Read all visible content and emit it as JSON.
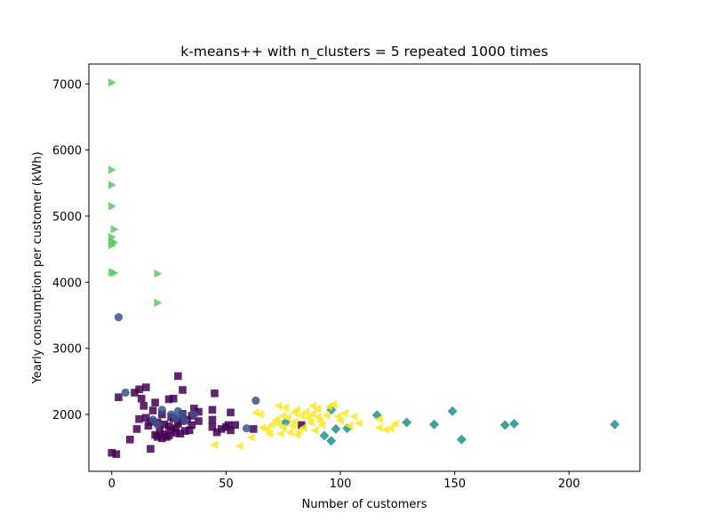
{
  "chart_data": {
    "type": "scatter",
    "title": "k-means++ with n_clusters = 5 repeated 1000 times",
    "xlabel": "Number of customers",
    "ylabel": "Yearly consumption per customer (kWh)",
    "xlim": [
      -10,
      231
    ],
    "ylim": [
      1140,
      7300
    ],
    "xticks": [
      0,
      50,
      100,
      150,
      200
    ],
    "yticks": [
      2000,
      3000,
      4000,
      5000,
      6000,
      7000
    ],
    "grid": false,
    "legend": "none",
    "series": [
      {
        "marker": "square",
        "color": "#440154",
        "points": [
          [
            0,
            1420
          ],
          [
            2,
            1400
          ],
          [
            3,
            2260
          ],
          [
            8,
            1620
          ],
          [
            10,
            2330
          ],
          [
            11,
            1780
          ],
          [
            12,
            1930
          ],
          [
            12,
            2380
          ],
          [
            13,
            2240
          ],
          [
            14,
            2130
          ],
          [
            15,
            2410
          ],
          [
            15,
            1950
          ],
          [
            16,
            1830
          ],
          [
            17,
            1890
          ],
          [
            17,
            1480
          ],
          [
            18,
            2060
          ],
          [
            19,
            2180
          ],
          [
            19,
            1690
          ],
          [
            20,
            1660
          ],
          [
            20,
            1880
          ],
          [
            21,
            1760
          ],
          [
            22,
            2000
          ],
          [
            22,
            1640
          ],
          [
            23,
            1700
          ],
          [
            23,
            1850
          ],
          [
            24,
            1660
          ],
          [
            25,
            2230
          ],
          [
            25,
            1820
          ],
          [
            25,
            1680
          ],
          [
            26,
            1960
          ],
          [
            26,
            1760
          ],
          [
            27,
            2240
          ],
          [
            27,
            1940
          ],
          [
            28,
            1790
          ],
          [
            28,
            1720
          ],
          [
            29,
            2580
          ],
          [
            29,
            1860
          ],
          [
            30,
            1710
          ],
          [
            30,
            1900
          ],
          [
            31,
            2370
          ],
          [
            31,
            2010
          ],
          [
            32,
            1750
          ],
          [
            33,
            1920
          ],
          [
            34,
            1760
          ],
          [
            35,
            1980
          ],
          [
            35,
            1840
          ],
          [
            36,
            2090
          ],
          [
            38,
            1900
          ],
          [
            38,
            2040
          ],
          [
            44,
            2070
          ],
          [
            44,
            1920
          ],
          [
            44,
            1810
          ],
          [
            45,
            2320
          ],
          [
            46,
            1730
          ],
          [
            48,
            1780
          ],
          [
            50,
            1810
          ],
          [
            51,
            1840
          ],
          [
            52,
            2030
          ],
          [
            52,
            1760
          ],
          [
            54,
            1840
          ],
          [
            62,
            1780
          ],
          [
            83,
            1840
          ]
        ]
      },
      {
        "marker": "circle",
        "color": "#3b528b",
        "points": [
          [
            3,
            3470
          ],
          [
            6,
            2330
          ],
          [
            18,
            1920
          ],
          [
            20,
            1850
          ],
          [
            22,
            2070
          ],
          [
            26,
            2000
          ],
          [
            28,
            1940
          ],
          [
            29,
            2050
          ],
          [
            31,
            2000
          ],
          [
            32,
            1900
          ],
          [
            36,
            2000
          ],
          [
            59,
            1790
          ],
          [
            63,
            2210
          ]
        ]
      },
      {
        "marker": "diamond",
        "color": "#21918c",
        "points": [
          [
            76,
            1880
          ],
          [
            93,
            1680
          ],
          [
            96,
            2070
          ],
          [
            96,
            1600
          ],
          [
            98,
            1780
          ],
          [
            103,
            1790
          ],
          [
            116,
            1990
          ],
          [
            129,
            1880
          ],
          [
            141,
            1850
          ],
          [
            149,
            2050
          ],
          [
            153,
            1620
          ],
          [
            172,
            1840
          ],
          [
            176,
            1860
          ],
          [
            220,
            1850
          ]
        ]
      },
      {
        "marker": "triangle-right",
        "color": "#5ec962",
        "points": [
          [
            0,
            7020
          ],
          [
            0,
            5700
          ],
          [
            0,
            5470
          ],
          [
            0,
            5150
          ],
          [
            1,
            4800
          ],
          [
            0,
            4680
          ],
          [
            0,
            4620
          ],
          [
            1,
            4600
          ],
          [
            0,
            4560
          ],
          [
            0,
            4150
          ],
          [
            1,
            4140
          ],
          [
            20,
            4130
          ],
          [
            20,
            3690
          ]
        ]
      },
      {
        "marker": "triangle-left",
        "color": "#fde725",
        "points": [
          [
            45,
            1540
          ],
          [
            56,
            1520
          ],
          [
            61,
            1650
          ],
          [
            63,
            2030
          ],
          [
            65,
            2000
          ],
          [
            66,
            1800
          ],
          [
            68,
            1780
          ],
          [
            69,
            1710
          ],
          [
            70,
            1850
          ],
          [
            72,
            1920
          ],
          [
            73,
            2130
          ],
          [
            73,
            1860
          ],
          [
            74,
            1710
          ],
          [
            75,
            1980
          ],
          [
            75,
            1800
          ],
          [
            76,
            2100
          ],
          [
            77,
            1950
          ],
          [
            78,
            1730
          ],
          [
            79,
            1830
          ],
          [
            80,
            2030
          ],
          [
            80,
            1890
          ],
          [
            81,
            2070
          ],
          [
            81,
            1690
          ],
          [
            82,
            1750
          ],
          [
            83,
            1980
          ],
          [
            84,
            1800
          ],
          [
            85,
            2040
          ],
          [
            86,
            1950
          ],
          [
            87,
            1880
          ],
          [
            88,
            2130
          ],
          [
            88,
            2010
          ],
          [
            89,
            1760
          ],
          [
            90,
            2090
          ],
          [
            90,
            1960
          ],
          [
            91,
            1900
          ],
          [
            92,
            1840
          ],
          [
            94,
            1990
          ],
          [
            95,
            2120
          ],
          [
            97,
            2150
          ],
          [
            99,
            1970
          ],
          [
            100,
            1910
          ],
          [
            102,
            2020
          ],
          [
            104,
            1830
          ],
          [
            106,
            1970
          ],
          [
            108,
            1870
          ],
          [
            117,
            1930
          ],
          [
            117,
            1800
          ],
          [
            120,
            1770
          ],
          [
            122,
            1790
          ],
          [
            124,
            1860
          ]
        ]
      }
    ]
  }
}
